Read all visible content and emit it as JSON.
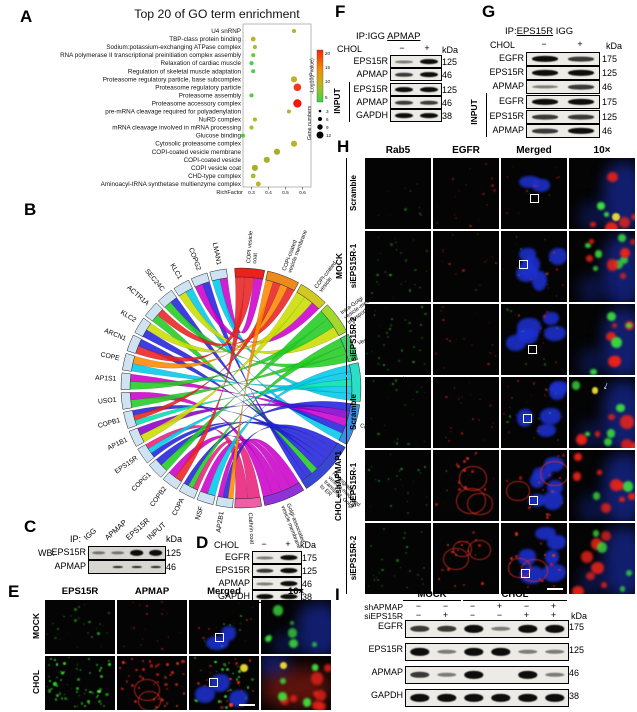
{
  "figure": {
    "A": {
      "label": "A",
      "chart_data": {
        "type": "scatter",
        "title": "Top 20 of GO term enrichment",
        "xlabel": "RichFactor",
        "xlim": [
          0.25,
          0.65
        ],
        "x_ticks": [
          0.3,
          0.4,
          0.5,
          0.6
        ],
        "color_legend": {
          "label": "-Log10(Pvalue)",
          "ticks": [
            20,
            15,
            10,
            5
          ],
          "colors": [
            "#ff2000",
            "#f09000",
            "#b8b820",
            "#30d840"
          ]
        },
        "size_legend": {
          "label": "Gene numbers",
          "ticks": [
            3,
            6,
            9,
            12
          ]
        },
        "points": [
          {
            "term": "U4 snRNP",
            "rich_factor": 0.55,
            "size": 3,
            "color": "#b9b427"
          },
          {
            "term": "TBP-class protein binding",
            "rich_factor": 0.31,
            "size": 4,
            "color": "#b9b427"
          },
          {
            "term": "Sodium:potassium-exchanging ATPase complex",
            "rich_factor": 0.32,
            "size": 3,
            "color": "#9fc030"
          },
          {
            "term": "RNA polymerase II transcriptional preinitiation complex assembly",
            "rich_factor": 0.31,
            "size": 3,
            "color": "#6cc838"
          },
          {
            "term": "Relaxation of cardiac muscle",
            "rich_factor": 0.3,
            "size": 3,
            "color": "#3ed24a"
          },
          {
            "term": "Regulation of skeletal muscle adaptation",
            "rich_factor": 0.31,
            "size": 3,
            "color": "#52cc42"
          },
          {
            "term": "Proteasome regulatory particle, base subcomplex",
            "rich_factor": 0.55,
            "size": 6,
            "color": "#b9b427"
          },
          {
            "term": "Proteasome regulatory particle",
            "rich_factor": 0.57,
            "size": 8,
            "color": "#f2391d"
          },
          {
            "term": "Proteasome assembly",
            "rich_factor": 0.3,
            "size": 3,
            "color": "#52cc42"
          },
          {
            "term": "Proteasome accessory complex",
            "rich_factor": 0.57,
            "size": 9,
            "color": "#f51707"
          },
          {
            "term": "pre-mRNA cleavage required for polyadenylation",
            "rich_factor": 0.52,
            "size": 3,
            "color": "#b9b427"
          },
          {
            "term": "NuRD complex",
            "rich_factor": 0.32,
            "size": 3,
            "color": "#b9b427"
          },
          {
            "term": "mRNA cleavage involved in mRNA processing",
            "rich_factor": 0.3,
            "size": 3,
            "color": "#9fc030"
          },
          {
            "term": "Glucose binding",
            "rich_factor": 0.25,
            "size": 3,
            "color": "#52cc42"
          },
          {
            "term": "Cytosolic proteasome complex",
            "rich_factor": 0.55,
            "size": 6,
            "color": "#b9b427"
          },
          {
            "term": "COPI-coated vesicle membrane",
            "rich_factor": 0.45,
            "size": 6,
            "color": "#aaaf2a"
          },
          {
            "term": "COPI-coated vesicle",
            "rich_factor": 0.39,
            "size": 6,
            "color": "#aaaf2a"
          },
          {
            "term": "COPI vesicle coat",
            "rich_factor": 0.32,
            "size": 6,
            "color": "#aaaf2a"
          },
          {
            "term": "CHD-type complex",
            "rich_factor": 0.31,
            "size": 4,
            "color": "#9fc030"
          },
          {
            "term": "Aminoacyl-tRNA synthetase multienzyme complex",
            "rich_factor": 0.34,
            "size": 4,
            "color": "#b9b427"
          }
        ]
      }
    },
    "B": {
      "label": "B",
      "chord": {
        "genes": [
          "LMAN1",
          "COPG2",
          "KLC1",
          "SEC24C",
          "ACTR1A",
          "KLC2",
          "ARCN1",
          "COPE",
          "AP1S1",
          "USO1",
          "COPB1",
          "AP1B1",
          "EPS15R",
          "COPG1",
          "COPB2",
          "COPA",
          "NSF",
          "AP2B1"
        ],
        "gene_color": "#cfe3f2",
        "go_terms": [
          {
            "label": "COPI vesicle coat",
            "color": "#e8231c",
            "w": 1.0
          },
          {
            "label": "COPI-coated vesicle membrane",
            "color": "#ec8a1e",
            "w": 1.1
          },
          {
            "label": "COPI-coated vesicle",
            "color": "#d2c822",
            "w": 1.0
          },
          {
            "label": "Intra-Golgi vesicle-mediated transport",
            "color": "#a4d82c",
            "w": 1.1
          },
          {
            "label": "Vesicle coat",
            "color": "#3ecf6e",
            "w": 0.9
          },
          {
            "label": "Membrane coat",
            "color": "#2adfc6",
            "w": 1.3
          },
          {
            "label": "Coated membrane",
            "color": "#3a90e6",
            "w": 1.4
          },
          {
            "label": "Retrograde vesicle-mediated transport, Golgi to ER",
            "color": "#3847d2",
            "w": 1.9
          },
          {
            "label": "Golgi-associated vesicle membrane",
            "color": "#9032d8",
            "w": 1.4
          },
          {
            "label": "Clathrin coat",
            "color": "#ef5fa7",
            "w": 0.9
          }
        ],
        "ribbons": [
          [
            0,
            0,
            "#cc00cc"
          ],
          [
            0,
            5,
            "#00c8e8"
          ],
          [
            1,
            7,
            "#2222dd"
          ],
          [
            1,
            2,
            "#cc00cc"
          ],
          [
            2,
            6,
            "#00c8e8"
          ],
          [
            2,
            3,
            "#ccdd00"
          ],
          [
            3,
            7,
            "#2222dd"
          ],
          [
            3,
            4,
            "#22cc22"
          ],
          [
            4,
            1,
            "#e82222"
          ],
          [
            4,
            7,
            "#22cc22"
          ],
          [
            5,
            2,
            "#ccdd00"
          ],
          [
            5,
            6,
            "#2222dd"
          ],
          [
            6,
            7,
            "#2222dd"
          ],
          [
            6,
            0,
            "#e82222"
          ],
          [
            7,
            1,
            "#ff8800"
          ],
          [
            7,
            5,
            "#00c8e8"
          ],
          [
            8,
            6,
            "#cc00cc"
          ],
          [
            8,
            3,
            "#22cc22"
          ],
          [
            9,
            8,
            "#cc00cc"
          ],
          [
            9,
            4,
            "#22cc22"
          ],
          [
            10,
            7,
            "#2222dd"
          ],
          [
            10,
            1,
            "#e82222"
          ],
          [
            10,
            5,
            "#00e0b0"
          ],
          [
            11,
            6,
            "#8800cc"
          ],
          [
            11,
            2,
            "#ccdd00"
          ],
          [
            12,
            9,
            "#e8207a"
          ],
          [
            12,
            5,
            "#00c8e8"
          ],
          [
            12,
            7,
            "#2222dd"
          ],
          [
            13,
            7,
            "#2222dd"
          ],
          [
            13,
            3,
            "#22cc22"
          ],
          [
            14,
            8,
            "#cc00cc"
          ],
          [
            14,
            0,
            "#e82222"
          ],
          [
            15,
            6,
            "#2222dd"
          ],
          [
            15,
            4,
            "#22cc22"
          ],
          [
            15,
            9,
            "#e8207a"
          ],
          [
            16,
            8,
            "#cc00cc"
          ],
          [
            16,
            5,
            "#00c8e8"
          ],
          [
            17,
            8,
            "#cc00cc"
          ],
          [
            17,
            7,
            "#2222dd"
          ],
          [
            17,
            1,
            "#ff8800"
          ]
        ]
      }
    },
    "C": {
      "label": "C",
      "ip_label": "IP:",
      "wb_label": "WB:",
      "kda_label": "kDa",
      "lanes": [
        "IGG",
        "APMAP",
        "EPS15R",
        "INPUT"
      ],
      "rows": [
        {
          "name": "EPS15R",
          "kda": "125",
          "bands": [
            "f",
            "f",
            "s",
            "s"
          ]
        },
        {
          "name": "APMAP",
          "kda": "46",
          "bands": [
            "",
            "d",
            "d",
            "d"
          ]
        }
      ]
    },
    "D": {
      "label": "D",
      "header": {
        "name": "CHOL",
        "lanes": [
          "−",
          "+"
        ],
        "kda": "kDa"
      },
      "rows": [
        {
          "name": "EGFR",
          "kda": "175",
          "bands": [
            "f",
            "s"
          ]
        },
        {
          "name": "EPS15R",
          "kda": "125",
          "bands": [
            "m",
            "s"
          ]
        },
        {
          "name": "APMAP",
          "kda": "46",
          "bands": [
            "f",
            "s"
          ]
        },
        {
          "name": "GAPDH",
          "kda": "38",
          "bands": [
            "s",
            "s"
          ]
        }
      ]
    },
    "E": {
      "label": "E",
      "columns": [
        "EPS15R",
        "APMAP",
        "Merged",
        "10×"
      ],
      "rows": [
        {
          "name": "MOCK",
          "cells": [
            "g26",
            "r20",
            "nuc2 g12 r10 roi",
            "zb bigG7"
          ]
        },
        {
          "name": "CHOL",
          "cells": [
            "G64",
            "R48 ring2",
            "nuc3 G22 R22 yel roi bar",
            "zred bigR8 bigG5 yel"
          ]
        }
      ]
    },
    "F": {
      "label": "F",
      "ip_prefix": "IP:IGG ",
      "ip_ab": "APMAP",
      "chol": "CHOL",
      "lanes": [
        "−",
        "+"
      ],
      "kda_label": "kDa",
      "input_label": "INPUT",
      "rows": [
        {
          "name": "EPS15R",
          "kda": "125",
          "bands": [
            "f",
            "s"
          ]
        },
        {
          "name": "APMAP",
          "kda": "46",
          "bands": [
            "m",
            "s"
          ]
        },
        {
          "name": "EPS15R",
          "kda": "125",
          "bands": [
            "s",
            "s"
          ]
        },
        {
          "name": "APMAP",
          "kda": "46",
          "bands": [
            "m",
            "m"
          ]
        },
        {
          "name": "GAPDH",
          "kda": "38",
          "bands": [
            "s",
            "s"
          ]
        }
      ]
    },
    "G": {
      "label": "G",
      "ip_prefix": "IP:",
      "ip_ab": "EPS15R",
      "ip_suffix": " IGG",
      "chol": "CHOL",
      "lanes": [
        "−",
        "+"
      ],
      "kda_label": "kDa",
      "input_label": "INPUT",
      "rows": [
        {
          "name": "EGFR",
          "kda": "175",
          "bands": [
            "s",
            "m"
          ]
        },
        {
          "name": "EPS15R",
          "kda": "125",
          "bands": [
            "s",
            "s"
          ]
        },
        {
          "name": "APMAP",
          "kda": "46",
          "bands": [
            "f",
            "m"
          ]
        },
        {
          "name": "EGFR",
          "kda": "175",
          "bands": [
            "s",
            "s"
          ]
        },
        {
          "name": "EPS15R",
          "kda": "125",
          "bands": [
            "m",
            "m"
          ]
        },
        {
          "name": "APMAP",
          "kda": "46",
          "bands": [
            "m",
            "s"
          ]
        }
      ]
    },
    "H": {
      "label": "H",
      "columns": [
        "Rab5",
        "EGFR",
        "Merged",
        "10×"
      ],
      "groups": [
        {
          "name": "MOCK",
          "rows": [
            {
              "name": "Scramble",
              "cells": [
                "g10",
                "r20",
                "nuc2 r12 roi",
                "zb bigR5 bigG2 yel"
              ]
            },
            {
              "name": "siEPS15R-1",
              "cells": [
                "g26",
                "r14",
                "nuc6 g10 r10 roi",
                "zb bigG6 bigR6"
              ]
            },
            {
              "name": "siEPS15R-2",
              "cells": [
                "g30",
                "r16",
                "nuc6 g10 r12 roi",
                "zb bigR5 bigG4"
              ]
            }
          ]
        },
        {
          "name": "CHOL+shAPMAP1",
          "rows": [
            {
              "name": "Scramble",
              "cells": [
                "g20",
                "r22",
                "nuc5 g12 r14 roi",
                "zb bigR6 bigG5 yel arrow"
              ]
            },
            {
              "name": "siEPS15R-1",
              "cells": [
                "g24",
                "ring3 R20",
                "nuc6 ring2 R16 roi",
                "zb bigR8 bigG2"
              ]
            },
            {
              "name": "siEPS15R-2",
              "cells": [
                "g26",
                "ring3 R18",
                "nuc6 ring2 R14 roi bar",
                "zb bigR7 bigG4"
              ]
            }
          ]
        }
      ]
    },
    "I": {
      "label": "I",
      "groups": [
        {
          "name": "MOCK",
          "lanes": 2
        },
        {
          "name": "CHOL",
          "lanes": 4
        }
      ],
      "condition_rows": [
        {
          "name": "shAPMAP",
          "values": [
            "−",
            "−",
            "−",
            "+",
            "−",
            "+"
          ]
        },
        {
          "name": "siEPS15R",
          "values": [
            "−",
            "+",
            "−",
            "−",
            "+",
            "+"
          ]
        }
      ],
      "kda_label": "kDa",
      "rows": [
        {
          "name": "EGFR",
          "kda": "175",
          "bands": [
            "m",
            "m",
            "s",
            "f",
            "s",
            "s"
          ]
        },
        {
          "name": "EPS15R",
          "kda": "125",
          "bands": [
            "s",
            "f",
            "s",
            "s",
            "f",
            "f"
          ]
        },
        {
          "name": "APMAP",
          "kda": "46",
          "bands": [
            "m",
            "f",
            "s",
            "",
            "s",
            "f"
          ]
        },
        {
          "name": "GAPDH",
          "kda": "38",
          "bands": [
            "s",
            "s",
            "s",
            "s",
            "s",
            "s"
          ]
        }
      ]
    }
  }
}
